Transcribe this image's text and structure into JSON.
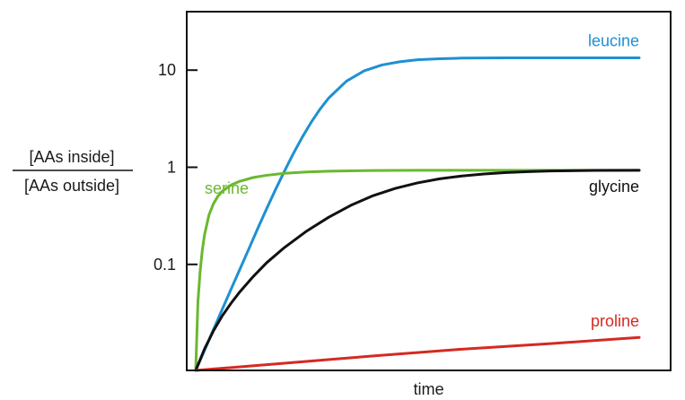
{
  "chart_data": {
    "type": "line",
    "title": "",
    "xlabel": "time",
    "ylabel": {
      "numerator": "[AAs inside]",
      "denominator": "[AAs outside]"
    },
    "y_scale": "log",
    "ylim": [
      0.0081,
      40
    ],
    "xlim": [
      0,
      10
    ],
    "y_ticks": [
      {
        "value": 10,
        "label": "10"
      },
      {
        "value": 1,
        "label": "1"
      },
      {
        "value": 0.1,
        "label": "0.1"
      }
    ],
    "x_ticks": [],
    "grid": false,
    "legend": "none",
    "series": [
      {
        "name": "leucine",
        "color": "#1e90d2",
        "points": [
          [
            0,
            0.0081
          ],
          [
            0.2,
            0.0131
          ],
          [
            0.4,
            0.0213
          ],
          [
            0.6,
            0.0346
          ],
          [
            0.8,
            0.056
          ],
          [
            1,
            0.09
          ],
          [
            1.2,
            0.145
          ],
          [
            1.4,
            0.235
          ],
          [
            1.6,
            0.375
          ],
          [
            1.8,
            0.59
          ],
          [
            2,
            0.91
          ],
          [
            2.2,
            1.38
          ],
          [
            2.4,
            2.03
          ],
          [
            2.6,
            2.89
          ],
          [
            2.8,
            3.95
          ],
          [
            3,
            5.17
          ],
          [
            3.4,
            7.71
          ],
          [
            3.8,
            9.85
          ],
          [
            4.2,
            11.3
          ],
          [
            4.6,
            12.2
          ],
          [
            5,
            12.8
          ],
          [
            5.5,
            13.1
          ],
          [
            6,
            13.3
          ],
          [
            7,
            13.4
          ],
          [
            8,
            13.4
          ],
          [
            9,
            13.4
          ],
          [
            10,
            13.4
          ]
        ]
      },
      {
        "name": "serine",
        "color": "#6ab82f",
        "points": [
          [
            0,
            0.0081
          ],
          [
            0.05,
            0.041
          ],
          [
            0.1,
            0.085
          ],
          [
            0.15,
            0.142
          ],
          [
            0.2,
            0.203
          ],
          [
            0.3,
            0.324
          ],
          [
            0.4,
            0.421
          ],
          [
            0.5,
            0.503
          ],
          [
            0.6,
            0.566
          ],
          [
            0.8,
            0.658
          ],
          [
            1,
            0.719
          ],
          [
            1.3,
            0.785
          ],
          [
            1.6,
            0.827
          ],
          [
            2,
            0.866
          ],
          [
            2.5,
            0.895
          ],
          [
            3,
            0.912
          ],
          [
            4,
            0.926
          ],
          [
            5,
            0.93
          ],
          [
            6,
            0.93
          ],
          [
            8,
            0.93
          ],
          [
            10,
            0.93
          ]
        ]
      },
      {
        "name": "glycine",
        "color": "#111111",
        "points": [
          [
            0,
            0.0081
          ],
          [
            0.2,
            0.0135
          ],
          [
            0.4,
            0.0207
          ],
          [
            0.6,
            0.0296
          ],
          [
            0.8,
            0.04
          ],
          [
            1,
            0.0525
          ],
          [
            1.3,
            0.0753
          ],
          [
            1.6,
            0.104
          ],
          [
            2,
            0.149
          ],
          [
            2.5,
            0.22
          ],
          [
            3,
            0.306
          ],
          [
            3.5,
            0.406
          ],
          [
            4,
            0.51
          ],
          [
            4.5,
            0.606
          ],
          [
            5,
            0.69
          ],
          [
            5.5,
            0.76
          ],
          [
            6,
            0.813
          ],
          [
            6.5,
            0.853
          ],
          [
            7,
            0.882
          ],
          [
            7.5,
            0.902
          ],
          [
            8,
            0.915
          ],
          [
            9,
            0.928
          ],
          [
            10,
            0.93
          ]
        ]
      },
      {
        "name": "proline",
        "color": "#d42a23",
        "points": [
          [
            0,
            0.0081
          ],
          [
            2,
            0.0096
          ],
          [
            4,
            0.0114
          ],
          [
            6,
            0.0134
          ],
          [
            8,
            0.0153
          ],
          [
            10,
            0.0177
          ]
        ]
      }
    ]
  }
}
